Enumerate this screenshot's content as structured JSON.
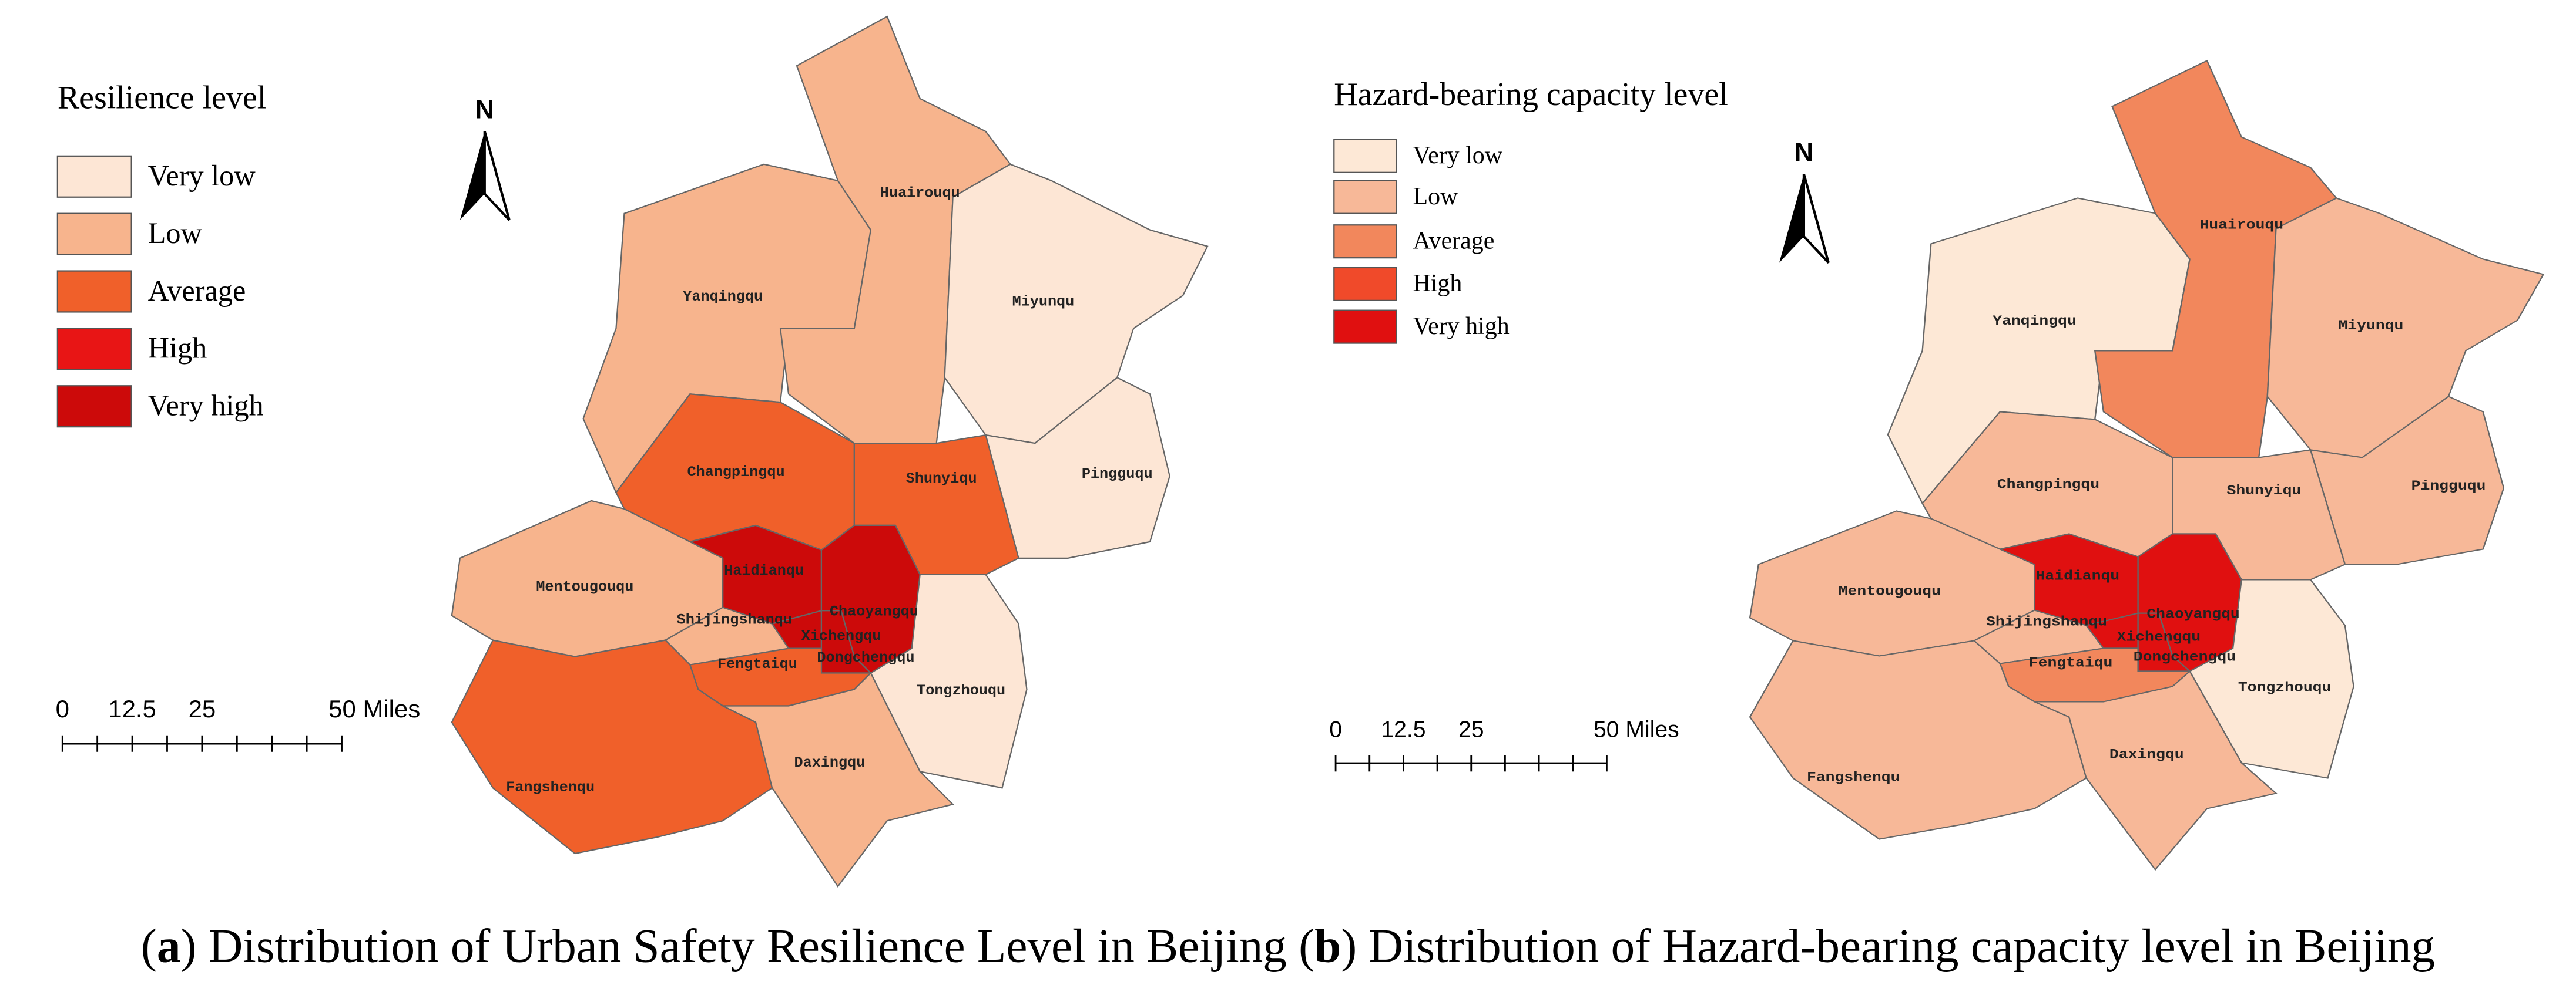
{
  "maps": [
    {
      "legend": {
        "title": "Resilience level",
        "items": [
          {
            "label": "Very low",
            "color": "#fde6d5"
          },
          {
            "label": "Low",
            "color": "#f7b48d"
          },
          {
            "label": "Average",
            "color": "#f0602a"
          },
          {
            "label": "High",
            "color": "#e81515"
          },
          {
            "label": "Very high",
            "color": "#cc0a0a"
          }
        ]
      },
      "north": "N",
      "scale_bar": [
        "0",
        "12.5",
        "25",
        "50 Miles"
      ],
      "districts": [
        {
          "name": "Yanqingqu",
          "level": "Low"
        },
        {
          "name": "Huairouqu",
          "level": "Low"
        },
        {
          "name": "Miyunqu",
          "level": "Very low"
        },
        {
          "name": "Pingguqu",
          "level": "Very low"
        },
        {
          "name": "Changpingqu",
          "level": "Average"
        },
        {
          "name": "Shunyiqu",
          "level": "Average"
        },
        {
          "name": "Mentougouqu",
          "level": "Low"
        },
        {
          "name": "Haidianqu",
          "level": "Very high"
        },
        {
          "name": "Chaoyangqu",
          "level": "Very high"
        },
        {
          "name": "Shijingshanqu",
          "level": "Low"
        },
        {
          "name": "Xichengqu",
          "level": "Very high"
        },
        {
          "name": "Dongchengqu",
          "level": "Very high"
        },
        {
          "name": "Fengtaiqu",
          "level": "Average"
        },
        {
          "name": "Tongzhouqu",
          "level": "Very low"
        },
        {
          "name": "Fangshenqu",
          "level": "Average"
        },
        {
          "name": "Daxingqu",
          "level": "Low"
        }
      ]
    },
    {
      "legend": {
        "title": "Hazard-bearing capacity level",
        "items": [
          {
            "label": "Very low",
            "color": "#fde8d6"
          },
          {
            "label": "Low",
            "color": "#f7b898"
          },
          {
            "label": "Average",
            "color": "#f2875c"
          },
          {
            "label": "High",
            "color": "#f04a2a"
          },
          {
            "label": "Very high",
            "color": "#e01010"
          }
        ]
      },
      "north": "N",
      "scale_bar": [
        "0",
        "12.5",
        "25",
        "50 Miles"
      ],
      "districts": [
        {
          "name": "Yanqingqu",
          "level": "Very low"
        },
        {
          "name": "Huairouqu",
          "level": "Average"
        },
        {
          "name": "Miyunqu",
          "level": "Low"
        },
        {
          "name": "Pingguqu",
          "level": "Low"
        },
        {
          "name": "Changpingqu",
          "level": "Low"
        },
        {
          "name": "Shunyiqu",
          "level": "Low"
        },
        {
          "name": "Mentougouqu",
          "level": "Low"
        },
        {
          "name": "Haidianqu",
          "level": "Very high"
        },
        {
          "name": "Chaoyangqu",
          "level": "Very high"
        },
        {
          "name": "Shijingshanqu",
          "level": "Low"
        },
        {
          "name": "Xichengqu",
          "level": "Very high"
        },
        {
          "name": "Dongchengqu",
          "level": "Very high"
        },
        {
          "name": "Fengtaiqu",
          "level": "Average"
        },
        {
          "name": "Tongzhouqu",
          "level": "Very low"
        },
        {
          "name": "Fangshenqu",
          "level": "Low"
        },
        {
          "name": "Daxingqu",
          "level": "Low"
        }
      ]
    }
  ],
  "caption": [
    "(",
    "a",
    ") Distribution of Urban Safety Resilience Level in Beijing (",
    "b",
    ") Distribution of Hazard-bearing capacity level in Beijing"
  ]
}
